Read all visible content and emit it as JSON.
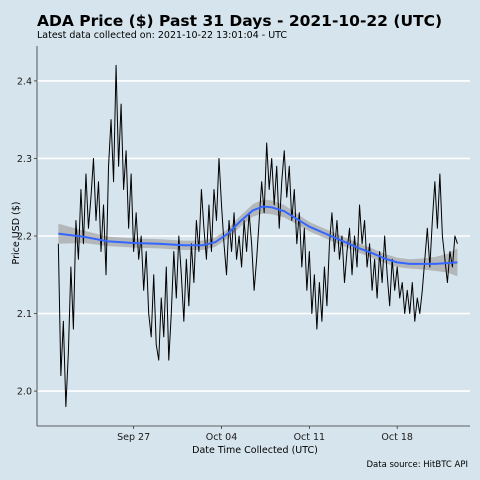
{
  "chart_data": {
    "type": "line",
    "title": "ADA Price ($) Past 31 Days - 2021-10-22 (UTC)",
    "subtitle": "Latest data collected on: 2021-10-22 13:01:04  - UTC",
    "xlabel": "Date Time Collected (UTC)",
    "ylabel": "Price USD ($)",
    "caption": "Data source: HitBTC API",
    "x_ticks": [
      {
        "label": "Sep 27",
        "day": 6
      },
      {
        "label": "Oct 04",
        "day": 13
      },
      {
        "label": "Oct 11",
        "day": 20
      },
      {
        "label": "Oct 18",
        "day": 27
      }
    ],
    "y_ticks": [
      2.0,
      2.1,
      2.2,
      2.3,
      2.4
    ],
    "xlim_days": [
      -1.7,
      32.8
    ],
    "ylim": [
      1.955,
      2.445
    ],
    "grid": true,
    "series": [
      {
        "style": "black-line",
        "points": [
          [
            0.0,
            2.19
          ],
          [
            0.2,
            2.02
          ],
          [
            0.4,
            2.09
          ],
          [
            0.6,
            1.98
          ],
          [
            0.8,
            2.05
          ],
          [
            1.0,
            2.16
          ],
          [
            1.2,
            2.08
          ],
          [
            1.4,
            2.22
          ],
          [
            1.6,
            2.17
          ],
          [
            1.8,
            2.26
          ],
          [
            2.0,
            2.19
          ],
          [
            2.2,
            2.28
          ],
          [
            2.4,
            2.21
          ],
          [
            2.6,
            2.25
          ],
          [
            2.8,
            2.3
          ],
          [
            3.0,
            2.22
          ],
          [
            3.2,
            2.27
          ],
          [
            3.4,
            2.18
          ],
          [
            3.6,
            2.24
          ],
          [
            3.8,
            2.15
          ],
          [
            4.0,
            2.29
          ],
          [
            4.2,
            2.35
          ],
          [
            4.4,
            2.27
          ],
          [
            4.6,
            2.42
          ],
          [
            4.8,
            2.29
          ],
          [
            5.0,
            2.37
          ],
          [
            5.2,
            2.26
          ],
          [
            5.4,
            2.31
          ],
          [
            5.6,
            2.21
          ],
          [
            5.8,
            2.28
          ],
          [
            6.0,
            2.18
          ],
          [
            6.2,
            2.23
          ],
          [
            6.4,
            2.17
          ],
          [
            6.6,
            2.2
          ],
          [
            6.8,
            2.13
          ],
          [
            7.0,
            2.18
          ],
          [
            7.2,
            2.1
          ],
          [
            7.4,
            2.07
          ],
          [
            7.6,
            2.15
          ],
          [
            7.8,
            2.06
          ],
          [
            8.0,
            2.04
          ],
          [
            8.2,
            2.12
          ],
          [
            8.4,
            2.07
          ],
          [
            8.6,
            2.16
          ],
          [
            8.8,
            2.04
          ],
          [
            9.0,
            2.1
          ],
          [
            9.2,
            2.18
          ],
          [
            9.4,
            2.12
          ],
          [
            9.6,
            2.2
          ],
          [
            9.8,
            2.15
          ],
          [
            10.0,
            2.09
          ],
          [
            10.2,
            2.17
          ],
          [
            10.4,
            2.11
          ],
          [
            10.6,
            2.19
          ],
          [
            10.8,
            2.14
          ],
          [
            11.0,
            2.22
          ],
          [
            11.2,
            2.18
          ],
          [
            11.4,
            2.26
          ],
          [
            11.6,
            2.21
          ],
          [
            11.8,
            2.17
          ],
          [
            12.0,
            2.24
          ],
          [
            12.2,
            2.18
          ],
          [
            12.4,
            2.26
          ],
          [
            12.6,
            2.22
          ],
          [
            12.8,
            2.3
          ],
          [
            13.0,
            2.24
          ],
          [
            13.2,
            2.19
          ],
          [
            13.4,
            2.15
          ],
          [
            13.6,
            2.22
          ],
          [
            13.8,
            2.18
          ],
          [
            14.0,
            2.23
          ],
          [
            14.2,
            2.17
          ],
          [
            14.4,
            2.2
          ],
          [
            14.6,
            2.16
          ],
          [
            14.8,
            2.22
          ],
          [
            15.0,
            2.18
          ],
          [
            15.2,
            2.23
          ],
          [
            15.4,
            2.19
          ],
          [
            15.6,
            2.13
          ],
          [
            15.8,
            2.17
          ],
          [
            16.0,
            2.22
          ],
          [
            16.2,
            2.27
          ],
          [
            16.4,
            2.23
          ],
          [
            16.6,
            2.32
          ],
          [
            16.8,
            2.26
          ],
          [
            17.0,
            2.3
          ],
          [
            17.2,
            2.24
          ],
          [
            17.4,
            2.29
          ],
          [
            17.6,
            2.21
          ],
          [
            17.8,
            2.27
          ],
          [
            18.0,
            2.31
          ],
          [
            18.2,
            2.25
          ],
          [
            18.4,
            2.29
          ],
          [
            18.6,
            2.22
          ],
          [
            18.8,
            2.26
          ],
          [
            19.0,
            2.19
          ],
          [
            19.2,
            2.23
          ],
          [
            19.4,
            2.16
          ],
          [
            19.6,
            2.21
          ],
          [
            19.8,
            2.13
          ],
          [
            20.0,
            2.18
          ],
          [
            20.2,
            2.1
          ],
          [
            20.4,
            2.15
          ],
          [
            20.6,
            2.08
          ],
          [
            20.8,
            2.14
          ],
          [
            21.0,
            2.09
          ],
          [
            21.2,
            2.16
          ],
          [
            21.4,
            2.11
          ],
          [
            21.6,
            2.19
          ],
          [
            21.8,
            2.23
          ],
          [
            22.0,
            2.18
          ],
          [
            22.2,
            2.22
          ],
          [
            22.4,
            2.17
          ],
          [
            22.6,
            2.2
          ],
          [
            22.8,
            2.14
          ],
          [
            23.0,
            2.18
          ],
          [
            23.2,
            2.21
          ],
          [
            23.4,
            2.15
          ],
          [
            23.6,
            2.2
          ],
          [
            23.8,
            2.16
          ],
          [
            24.0,
            2.24
          ],
          [
            24.2,
            2.19
          ],
          [
            24.4,
            2.22
          ],
          [
            24.6,
            2.16
          ],
          [
            24.8,
            2.19
          ],
          [
            25.0,
            2.13
          ],
          [
            25.2,
            2.17
          ],
          [
            25.4,
            2.12
          ],
          [
            25.6,
            2.18
          ],
          [
            25.8,
            2.14
          ],
          [
            26.0,
            2.2
          ],
          [
            26.2,
            2.15
          ],
          [
            26.4,
            2.11
          ],
          [
            26.6,
            2.17
          ],
          [
            26.8,
            2.13
          ],
          [
            27.0,
            2.16
          ],
          [
            27.2,
            2.12
          ],
          [
            27.4,
            2.14
          ],
          [
            27.6,
            2.1
          ],
          [
            27.8,
            2.13
          ],
          [
            28.0,
            2.1
          ],
          [
            28.2,
            2.14
          ],
          [
            28.4,
            2.09
          ],
          [
            28.6,
            2.12
          ],
          [
            28.8,
            2.1
          ],
          [
            29.0,
            2.13
          ],
          [
            29.2,
            2.17
          ],
          [
            29.4,
            2.21
          ],
          [
            29.6,
            2.16
          ],
          [
            29.8,
            2.22
          ],
          [
            30.0,
            2.27
          ],
          [
            30.2,
            2.21
          ],
          [
            30.4,
            2.28
          ],
          [
            30.6,
            2.2
          ],
          [
            30.8,
            2.17
          ],
          [
            31.0,
            2.14
          ],
          [
            31.2,
            2.18
          ],
          [
            31.4,
            2.16
          ],
          [
            31.6,
            2.2
          ],
          [
            31.8,
            2.19
          ]
        ]
      },
      {
        "style": "smooth-trend",
        "color": "#3366ff",
        "band_color": "#a8a8a8",
        "points": [
          [
            0.0,
            2.203
          ],
          [
            2.0,
            2.199
          ],
          [
            4.0,
            2.193
          ],
          [
            6.0,
            2.191
          ],
          [
            8.0,
            2.19
          ],
          [
            10.0,
            2.188
          ],
          [
            11.5,
            2.188
          ],
          [
            12.5,
            2.192
          ],
          [
            13.5,
            2.203
          ],
          [
            14.5,
            2.219
          ],
          [
            15.5,
            2.233
          ],
          [
            16.3,
            2.238
          ],
          [
            17.0,
            2.237
          ],
          [
            18.0,
            2.232
          ],
          [
            19.0,
            2.222
          ],
          [
            20.0,
            2.212
          ],
          [
            21.0,
            2.205
          ],
          [
            22.0,
            2.198
          ],
          [
            23.0,
            2.191
          ],
          [
            24.0,
            2.184
          ],
          [
            25.0,
            2.178
          ],
          [
            26.0,
            2.171
          ],
          [
            27.0,
            2.166
          ],
          [
            28.0,
            2.164
          ],
          [
            29.0,
            2.164
          ],
          [
            30.0,
            2.164
          ],
          [
            31.0,
            2.165
          ],
          [
            31.8,
            2.166
          ]
        ],
        "band_halfwidth": [
          0.013,
          0.008,
          0.006,
          0.006,
          0.006,
          0.006,
          0.006,
          0.006,
          0.006,
          0.007,
          0.008,
          0.009,
          0.009,
          0.008,
          0.007,
          0.006,
          0.006,
          0.006,
          0.006,
          0.006,
          0.006,
          0.006,
          0.006,
          0.006,
          0.007,
          0.009,
          0.012,
          0.018
        ]
      }
    ]
  }
}
